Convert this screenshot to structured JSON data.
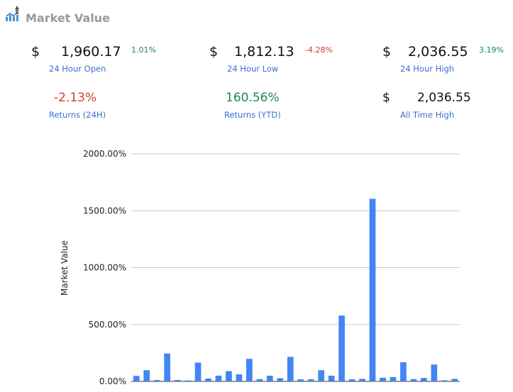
{
  "header": {
    "title": "Market Value",
    "logo_icon": "chart-rocket-icon"
  },
  "stats": {
    "open": {
      "currency": "$",
      "value": "1,960.17",
      "change": "1.01%",
      "label": "24 Hour Open"
    },
    "low": {
      "currency": "$",
      "value": "1,812.13",
      "change": "-4.28%",
      "label": "24 Hour Low"
    },
    "high": {
      "currency": "$",
      "value": "2,036.55",
      "change": "3.19%",
      "label": "24 Hour High"
    },
    "ret24": {
      "value": "-2.13%",
      "label": "Returns (24H)"
    },
    "retytd": {
      "value": "160.56%",
      "label": "Returns (YTD)"
    },
    "ath": {
      "currency": "$",
      "value": "2,036.55",
      "label": "All Time High"
    }
  },
  "colors": {
    "bar": "#4285f4",
    "positive": "#1b8a4d",
    "negative": "#d33a2c",
    "label": "#3c6fd1"
  },
  "chart_data": {
    "type": "bar",
    "ylabel": "Market Value",
    "ylim": [
      0,
      2000
    ],
    "yticks": [
      "0.00%",
      "500.00%",
      "1000.00%",
      "1500.00%",
      "2000.00%"
    ],
    "grid": true,
    "values": [
      48,
      98,
      12,
      245,
      12,
      8,
      165,
      25,
      50,
      90,
      62,
      198,
      20,
      50,
      28,
      215,
      18,
      18,
      98,
      50,
      578,
      18,
      22,
      1605,
      32,
      38,
      168,
      20,
      30,
      148,
      10,
      22
    ]
  }
}
